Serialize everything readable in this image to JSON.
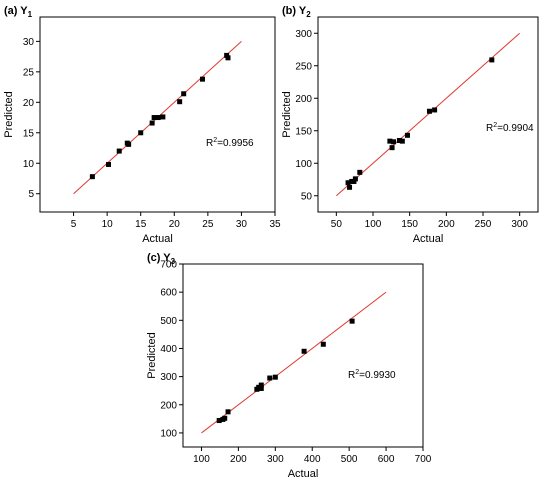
{
  "chart_data": [
    {
      "type": "scatter",
      "panel_label": "(a) Y",
      "panel_sub": "1",
      "xlabel": "Actual",
      "ylabel": "Predicted",
      "xlim": [
        0,
        35
      ],
      "ylim": [
        2,
        34
      ],
      "xticks": [
        5,
        10,
        15,
        20,
        25,
        30,
        35
      ],
      "yticks": [
        5,
        10,
        15,
        20,
        25,
        30
      ],
      "r2_prefix": "R",
      "r2_sup": "2",
      "r2_value": "=0.9956",
      "fit_line": [
        [
          5,
          5
        ],
        [
          30,
          30
        ]
      ],
      "points": [
        [
          7.8,
          7.8
        ],
        [
          10.2,
          9.8
        ],
        [
          11.8,
          12.0
        ],
        [
          13.0,
          13.3
        ],
        [
          13.2,
          13.1
        ],
        [
          15.0,
          15.0
        ],
        [
          16.7,
          16.6
        ],
        [
          17.0,
          17.5
        ],
        [
          17.6,
          17.5
        ],
        [
          18.3,
          17.6
        ],
        [
          20.8,
          20.1
        ],
        [
          21.4,
          21.4
        ],
        [
          24.2,
          23.8
        ],
        [
          27.8,
          27.7
        ],
        [
          28.0,
          27.3
        ]
      ]
    },
    {
      "type": "scatter",
      "panel_label": "(b) Y",
      "panel_sub": "2",
      "xlabel": "Actual",
      "ylabel": "Predicted",
      "xlim": [
        25,
        325
      ],
      "ylim": [
        25,
        325
      ],
      "xticks": [
        50,
        100,
        150,
        200,
        250,
        300
      ],
      "yticks": [
        50,
        100,
        150,
        200,
        250,
        300
      ],
      "r2_prefix": "R",
      "r2_sup": "2",
      "r2_value": "=0.9904",
      "fit_line": [
        [
          50,
          50
        ],
        [
          300,
          300
        ]
      ],
      "points": [
        [
          66,
          70
        ],
        [
          68,
          63
        ],
        [
          71,
          72
        ],
        [
          74,
          72
        ],
        [
          76,
          76
        ],
        [
          82,
          86
        ],
        [
          123,
          134
        ],
        [
          126,
          124
        ],
        [
          128,
          133
        ],
        [
          136,
          135
        ],
        [
          140,
          134
        ],
        [
          147,
          143
        ],
        [
          177,
          180
        ],
        [
          184,
          182
        ],
        [
          262,
          259
        ]
      ]
    },
    {
      "type": "scatter",
      "panel_label": "(c) Y",
      "panel_sub": "3",
      "xlabel": "Actual",
      "ylabel": "Predicted",
      "xlim": [
        50,
        700
      ],
      "ylim": [
        50,
        700
      ],
      "xticks": [
        100,
        200,
        300,
        400,
        500,
        600,
        700
      ],
      "yticks": [
        100,
        200,
        300,
        400,
        500,
        600,
        700
      ],
      "r2_prefix": "R",
      "r2_sup": "2",
      "r2_value": "=0.9930",
      "fit_line": [
        [
          100,
          100
        ],
        [
          600,
          600
        ]
      ],
      "points": [
        [
          148,
          144
        ],
        [
          158,
          148
        ],
        [
          163,
          152
        ],
        [
          172,
          175
        ],
        [
          250,
          255
        ],
        [
          255,
          262
        ],
        [
          262,
          270
        ],
        [
          262,
          258
        ],
        [
          285,
          295
        ],
        [
          300,
          298
        ],
        [
          378,
          390
        ],
        [
          430,
          415
        ],
        [
          508,
          497
        ]
      ]
    }
  ]
}
